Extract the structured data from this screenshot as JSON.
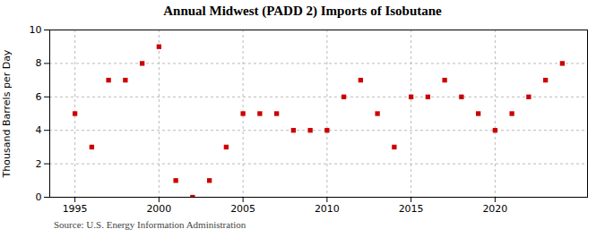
{
  "chart_data": {
    "type": "scatter",
    "title": "Annual Midwest (PADD 2) Imports of Isobutane",
    "ylabel": "Thousand Barrels per Day",
    "caption": "Source: U.S. Energy Information Administration",
    "x": [
      1995,
      1996,
      1997,
      1998,
      1999,
      2000,
      2001,
      2002,
      2003,
      2004,
      2005,
      2006,
      2007,
      2008,
      2009,
      2010,
      2011,
      2012,
      2013,
      2014,
      2015,
      2016,
      2017,
      2018,
      2019,
      2020,
      2021,
      2022,
      2023,
      2024
    ],
    "values": [
      5,
      3,
      7,
      7,
      8,
      9,
      1,
      0,
      1,
      3,
      5,
      5,
      5,
      4,
      4,
      4,
      6,
      7,
      5,
      3,
      6,
      6,
      7,
      6,
      5,
      4,
      5,
      6,
      7,
      8
    ],
    "color": "#cc0000",
    "marker": "square",
    "xlim": [
      1993.5,
      2025.5
    ],
    "ylim": [
      0,
      10
    ],
    "xticks": [
      1995,
      2000,
      2005,
      2010,
      2015,
      2020
    ],
    "yticks": [
      0,
      2,
      4,
      6,
      8,
      10
    ],
    "grid": true
  }
}
